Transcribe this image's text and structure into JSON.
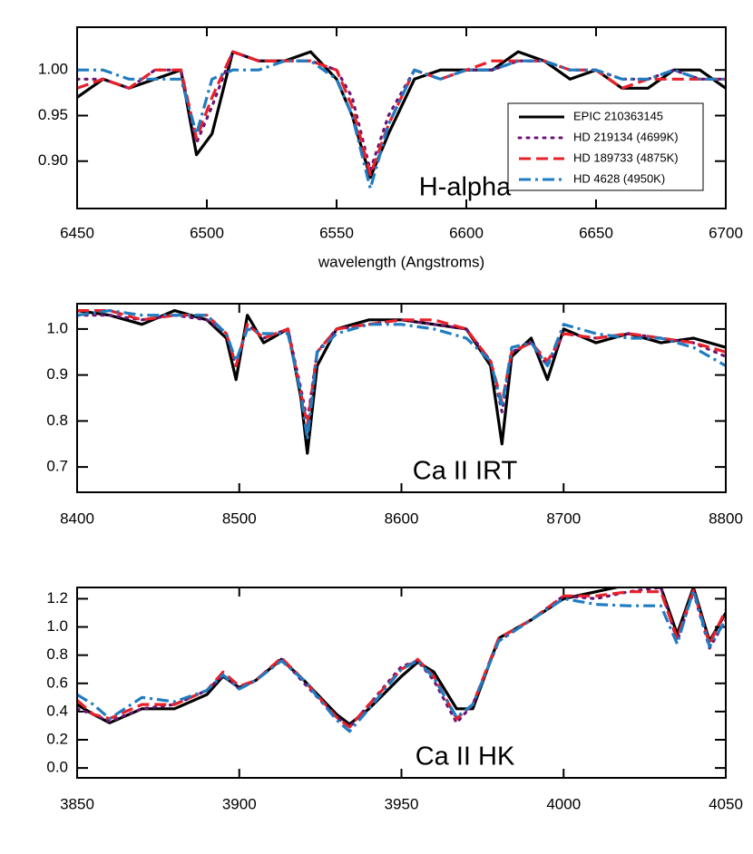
{
  "chart_data": [
    {
      "type": "line",
      "annotation": "H-alpha",
      "x_label": "wavelength (Angstroms)",
      "xlim": [
        6450,
        6700
      ],
      "xticks": [
        6450,
        6500,
        6550,
        6600,
        6650,
        6700
      ],
      "ylim": [
        0.848,
        1.047
      ],
      "yticks": [
        {
          "value": 0.9,
          "label": "0.90"
        },
        {
          "value": 0.95,
          "label": "0.95"
        },
        {
          "value": 1.0,
          "label": "1.00"
        }
      ],
      "legend": "lower right",
      "x": [
        6450,
        6460,
        6470,
        6480,
        6490,
        6496,
        6502,
        6510,
        6520,
        6530,
        6540,
        6550,
        6556,
        6563,
        6570,
        6580,
        6590,
        6600,
        6610,
        6620,
        6630,
        6640,
        6650,
        6660,
        6670,
        6680,
        6690,
        6700
      ],
      "series": [
        {
          "name": "EPIC 210363145",
          "color": "#000000",
          "dash": "solid",
          "values": [
            0.97,
            0.99,
            0.98,
            0.99,
            1.0,
            0.907,
            0.93,
            1.02,
            1.01,
            1.01,
            1.02,
            0.99,
            0.95,
            0.882,
            0.93,
            0.99,
            1.0,
            1.0,
            1.0,
            1.02,
            1.01,
            0.99,
            1.0,
            0.98,
            0.98,
            1.0,
            1.0,
            0.98
          ]
        },
        {
          "name": "HD 219134 (4699K)",
          "color": "#6b1473",
          "dash": "dotted",
          "values": [
            0.99,
            0.99,
            0.98,
            1.0,
            1.0,
            0.92,
            0.96,
            1.02,
            1.01,
            1.01,
            1.01,
            1.0,
            0.97,
            0.89,
            0.95,
            1.0,
            0.99,
            1.0,
            1.0,
            1.01,
            1.01,
            1.0,
            1.0,
            0.99,
            0.99,
            1.0,
            0.99,
            0.99
          ]
        },
        {
          "name": "HD 189733 (4875K)",
          "color": "#e8202a",
          "dash": "dashed",
          "values": [
            0.98,
            0.99,
            0.98,
            1.0,
            1.0,
            0.925,
            0.97,
            1.02,
            1.01,
            1.01,
            1.01,
            1.0,
            0.96,
            0.885,
            0.94,
            1.0,
            0.99,
            1.0,
            1.01,
            1.01,
            1.01,
            1.0,
            1.0,
            0.98,
            0.99,
            0.99,
            0.99,
            0.99
          ]
        },
        {
          "name": "HD 4628 (4950K)",
          "color": "#1f7cc1",
          "dash": "dashdot",
          "values": [
            1.0,
            1.0,
            0.99,
            0.99,
            0.99,
            0.93,
            0.99,
            1.0,
            1.0,
            1.01,
            1.01,
            0.99,
            0.95,
            0.87,
            0.94,
            1.0,
            0.99,
            1.0,
            1.0,
            1.01,
            1.01,
            1.0,
            1.0,
            0.99,
            0.99,
            1.0,
            0.99,
            0.99
          ]
        }
      ]
    },
    {
      "type": "line",
      "annotation": "Ca II IRT",
      "xlim": [
        8400,
        8800
      ],
      "xticks": [
        8400,
        8500,
        8600,
        8700,
        8800
      ],
      "ylim": [
        0.645,
        1.055
      ],
      "yticks": [
        0.7,
        0.8,
        0.9,
        {
          "value": 1.0,
          "label": "1.0"
        }
      ],
      "x": [
        8400,
        8420,
        8440,
        8460,
        8480,
        8492,
        8498,
        8505,
        8515,
        8530,
        8538,
        8542,
        8548,
        8560,
        8580,
        8600,
        8620,
        8640,
        8655,
        8662,
        8668,
        8680,
        8690,
        8700,
        8720,
        8740,
        8760,
        8780,
        8800
      ],
      "series": [
        {
          "color": "#000000",
          "dash": "solid",
          "values": [
            1.04,
            1.03,
            1.01,
            1.04,
            1.02,
            0.98,
            0.89,
            1.03,
            0.97,
            1.0,
            0.85,
            0.73,
            0.92,
            1.0,
            1.02,
            1.02,
            1.01,
            1.0,
            0.92,
            0.75,
            0.94,
            0.98,
            0.89,
            1.0,
            0.97,
            0.99,
            0.97,
            0.98,
            0.96
          ]
        },
        {
          "color": "#6b1473",
          "dash": "dotted",
          "values": [
            1.03,
            1.03,
            1.02,
            1.03,
            1.02,
            0.99,
            0.92,
            1.01,
            0.98,
            1.0,
            0.87,
            0.8,
            0.95,
            1.0,
            1.01,
            1.02,
            1.01,
            1.0,
            0.93,
            0.82,
            0.95,
            0.97,
            0.92,
            0.99,
            0.98,
            0.99,
            0.98,
            0.97,
            0.94
          ]
        },
        {
          "color": "#e8202a",
          "dash": "dashed",
          "values": [
            1.04,
            1.04,
            1.02,
            1.03,
            1.03,
            0.99,
            0.92,
            1.01,
            0.98,
            1.0,
            0.86,
            0.79,
            0.95,
            1.0,
            1.01,
            1.02,
            1.02,
            1.0,
            0.93,
            0.84,
            0.95,
            0.97,
            0.93,
            0.99,
            0.98,
            0.99,
            0.98,
            0.97,
            0.95
          ]
        },
        {
          "color": "#1f7cc1",
          "dash": "dashdot",
          "values": [
            1.03,
            1.04,
            1.03,
            1.03,
            1.03,
            0.99,
            0.93,
            1.0,
            0.99,
            0.99,
            0.86,
            0.76,
            0.95,
            0.99,
            1.01,
            1.01,
            1.0,
            0.98,
            0.93,
            0.83,
            0.96,
            0.97,
            0.92,
            1.01,
            0.99,
            0.98,
            0.98,
            0.96,
            0.92
          ]
        }
      ]
    },
    {
      "type": "line",
      "annotation": "Ca II HK",
      "xlim": [
        3850,
        4050
      ],
      "xticks": [
        3850,
        3900,
        3950,
        4000,
        4050
      ],
      "ylim": [
        -0.07,
        1.28
      ],
      "yticks": [
        {
          "value": 0.0,
          "label": "0.0"
        },
        0.2,
        0.4,
        0.6,
        0.8,
        {
          "value": 1.0,
          "label": "1.0"
        },
        1.2
      ],
      "x": [
        3850,
        3855,
        3860,
        3870,
        3880,
        3890,
        3895,
        3900,
        3905,
        3913,
        3920,
        3930,
        3934,
        3940,
        3950,
        3955,
        3960,
        3967,
        3972,
        3980,
        3990,
        4000,
        4010,
        4020,
        4030,
        4035,
        4040,
        4045,
        4050
      ],
      "series": [
        {
          "color": "#000000",
          "dash": "solid",
          "values": [
            0.45,
            0.38,
            0.32,
            0.42,
            0.42,
            0.52,
            0.65,
            0.57,
            0.62,
            0.77,
            0.62,
            0.38,
            0.31,
            0.42,
            0.65,
            0.75,
            0.68,
            0.42,
            0.42,
            0.92,
            1.05,
            1.2,
            1.25,
            1.3,
            1.28,
            0.95,
            1.28,
            0.9,
            1.1
          ]
        },
        {
          "color": "#6b1473",
          "dash": "dotted",
          "values": [
            0.42,
            0.38,
            0.33,
            0.42,
            0.45,
            0.55,
            0.66,
            0.56,
            0.62,
            0.78,
            0.6,
            0.36,
            0.29,
            0.45,
            0.72,
            0.76,
            0.62,
            0.32,
            0.45,
            0.9,
            1.05,
            1.22,
            1.2,
            1.25,
            1.28,
            0.9,
            1.25,
            0.85,
            1.05
          ]
        },
        {
          "color": "#e8202a",
          "dash": "dashed",
          "values": [
            0.48,
            0.38,
            0.35,
            0.45,
            0.45,
            0.55,
            0.68,
            0.58,
            0.62,
            0.78,
            0.62,
            0.36,
            0.29,
            0.45,
            0.7,
            0.77,
            0.65,
            0.35,
            0.45,
            0.92,
            1.05,
            1.22,
            1.22,
            1.25,
            1.25,
            0.92,
            1.26,
            0.88,
            1.12
          ]
        },
        {
          "color": "#1f7cc1",
          "dash": "dashdot",
          "values": [
            0.52,
            0.45,
            0.35,
            0.5,
            0.47,
            0.55,
            0.66,
            0.56,
            0.62,
            0.76,
            0.62,
            0.34,
            0.26,
            0.42,
            0.7,
            0.76,
            0.64,
            0.36,
            0.45,
            0.9,
            1.05,
            1.2,
            1.16,
            1.15,
            1.15,
            0.88,
            1.26,
            0.86,
            1.05
          ]
        }
      ]
    }
  ]
}
